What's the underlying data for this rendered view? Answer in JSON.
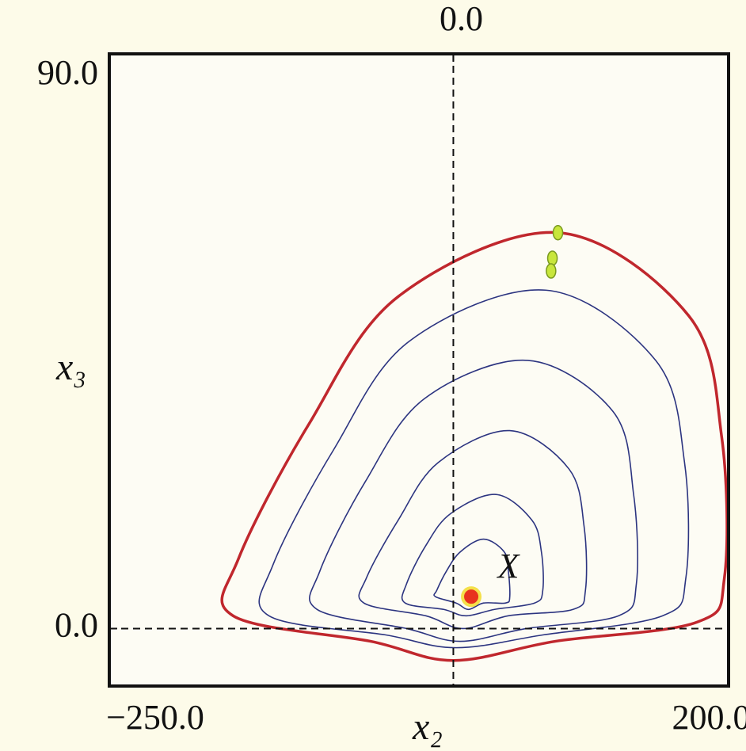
{
  "chart_data": {
    "type": "line",
    "xlabel": "x₂",
    "ylabel": "x₃",
    "xlim": [
      -250,
      200
    ],
    "ylim": [
      -9,
      90
    ],
    "xticks": [
      {
        "value": -250,
        "label": "−250.0"
      },
      {
        "value": 200,
        "label": "200.0"
      }
    ],
    "xticks_top": [
      {
        "value": 0,
        "label": "0.0"
      }
    ],
    "yticks": [
      {
        "value": 90,
        "label": "90.0"
      },
      {
        "value": 0,
        "label": "0.0"
      }
    ],
    "zero_lines": true,
    "series": [
      {
        "color": "#2c3480",
        "x": [
          22,
          37,
          40,
          41,
          38,
          22,
          11,
          2,
          -13,
          -12,
          -5,
          5
        ],
        "y": [
          14,
          12,
          9,
          5,
          4,
          4,
          3,
          4,
          5,
          6,
          9,
          12
        ]
      },
      {
        "color": "#2c3480",
        "x": [
          31,
          57,
          64,
          65,
          59,
          30,
          9,
          -7,
          -35,
          -34,
          -20,
          -2
        ],
        "y": [
          21,
          17,
          12,
          6,
          4,
          3,
          2,
          3,
          4,
          7,
          13,
          18
        ]
      },
      {
        "color": "#2c3480",
        "x": [
          41,
          84,
          95,
          96,
          87,
          40,
          7,
          -20,
          -65,
          -63,
          -40,
          -11
        ],
        "y": [
          31,
          25,
          16,
          6,
          3,
          2,
          0,
          2,
          4,
          8,
          17,
          26
        ]
      },
      {
        "color": "#2c3480",
        "x": [
          54,
          116,
          131,
          133,
          120,
          53,
          5,
          -34,
          -99,
          -97,
          -64,
          -21
        ],
        "y": [
          42,
          34,
          21,
          7,
          2,
          0,
          -2,
          0,
          3,
          9,
          23,
          36
        ]
      },
      {
        "color": "#2c3480",
        "x": [
          67,
          147,
          168,
          169,
          152,
          65,
          2,
          -49,
          -134,
          -131,
          -87,
          -32
        ],
        "y": [
          53,
          42,
          26,
          8,
          2,
          -1,
          -3,
          -1,
          2,
          10,
          28,
          45
        ]
      },
      {
        "color": "#c0272d",
        "x": [
          76,
          171,
          195,
          197,
          177,
          74,
          0,
          -60,
          -160,
          -156,
          -105,
          -40
        ],
        "y": [
          62,
          49,
          30,
          8,
          1,
          -2,
          -5,
          -2,
          2,
          11,
          32,
          52
        ]
      }
    ],
    "markers": {
      "color": "#c8e63c",
      "x": [
        76,
        72,
        71
      ],
      "y": [
        62,
        58,
        56
      ]
    },
    "fixed_point": {
      "color": "#e8321e",
      "x": 13,
      "y": 5
    },
    "annotation": {
      "text": "X",
      "x": 40,
      "y": 8,
      "color": "#4a9a3a"
    }
  }
}
